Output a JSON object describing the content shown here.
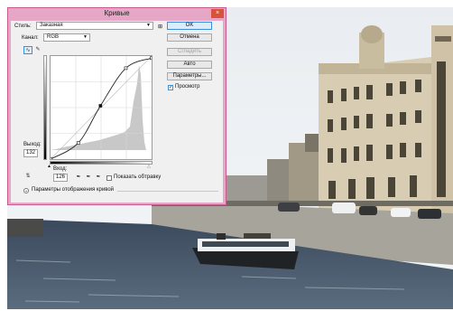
{
  "dialog": {
    "title": "Кривые",
    "close_glyph": "×",
    "preset_label": "Стиль:",
    "preset_value": "Заказная",
    "preset_menu_glyph": "⊞",
    "channel_label": "Канал:",
    "channel_value": "RGB",
    "output_label": "Выход:",
    "output_value": "132",
    "input_label": "Вход:",
    "input_value": "126",
    "show_clipping_label": "Показать обтравку",
    "show_clipping_checked": false,
    "curve_options_label": "Параметры отображения кривой",
    "buttons": {
      "ok": "OK",
      "cancel": "Отмена",
      "smooth": "Сгладить",
      "auto": "Авто",
      "options": "Параметры..."
    },
    "preview_label": "Просмотр",
    "preview_checked": true
  },
  "curve": {
    "input_range": [
      0,
      255
    ],
    "output_range": [
      0,
      255
    ],
    "points": [
      [
        0,
        0
      ],
      [
        70,
        40
      ],
      [
        126,
        132
      ],
      [
        190,
        225
      ],
      [
        255,
        250
      ]
    ],
    "selected_point": [
      126,
      132
    ]
  },
  "colors": {
    "dialog_border": "#c45d8e",
    "dialog_frame": "#e6a7c6",
    "ok_highlight": "#3c8fd8"
  }
}
